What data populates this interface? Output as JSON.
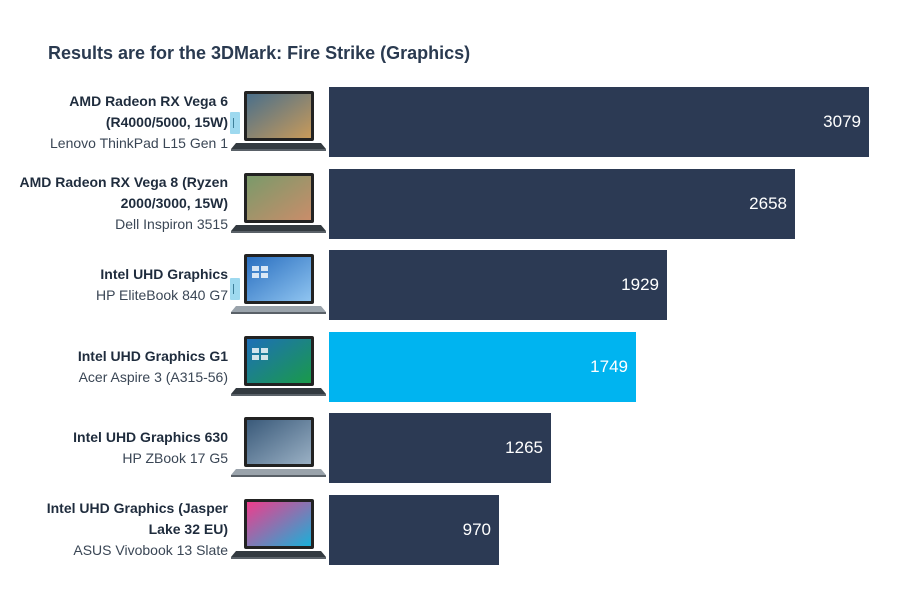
{
  "chart_data": {
    "type": "bar",
    "orientation": "horizontal",
    "title": "Results are for the 3DMark: Fire Strike (Graphics)",
    "xlabel": "",
    "ylabel": "",
    "xlim": [
      0,
      3079
    ],
    "grid": false,
    "legend": "none",
    "categories": [
      {
        "gpu": "AMD Radeon RX Vega 6 (R4000/5000, 15W)",
        "gpu_lines": [
          "AMD Radeon RX Vega 6",
          "(R4000/5000, 15W)"
        ],
        "device": "Lenovo ThinkPad L15 Gen 1",
        "value": 3079,
        "highlight": false,
        "laptop": "thinkpad"
      },
      {
        "gpu": "AMD Radeon RX Vega 8 (Ryzen 2000/3000, 15W)",
        "gpu_lines": [
          "AMD Radeon RX Vega 8 (Ryzen",
          "2000/3000, 15W)"
        ],
        "device": "Dell Inspiron 3515",
        "value": 2658,
        "highlight": false,
        "laptop": "dell"
      },
      {
        "gpu": "Intel UHD Graphics",
        "gpu_lines": [
          "Intel UHD Graphics"
        ],
        "device": "HP EliteBook 840 G7",
        "value": 1929,
        "highlight": false,
        "laptop": "elitebook"
      },
      {
        "gpu": "Intel UHD Graphics G1",
        "gpu_lines": [
          "Intel UHD Graphics G1"
        ],
        "device": "Acer Aspire 3 (A315-56)",
        "value": 1749,
        "highlight": true,
        "laptop": "acer"
      },
      {
        "gpu": "Intel UHD Graphics 630",
        "gpu_lines": [
          "Intel UHD Graphics 630"
        ],
        "device": "HP ZBook 17 G5",
        "value": 1265,
        "highlight": false,
        "laptop": "zbook"
      },
      {
        "gpu": "Intel UHD Graphics (Jasper Lake 32 EU)",
        "gpu_lines": [
          "Intel UHD Graphics (Jasper",
          "Lake 32 EU)"
        ],
        "device": "ASUS Vivobook 13 Slate",
        "value": 970,
        "highlight": false,
        "laptop": "asus"
      }
    ],
    "colors": {
      "bar": "#2c3a54",
      "highlight": "#00b4f0",
      "value_text": "#ffffff"
    }
  }
}
